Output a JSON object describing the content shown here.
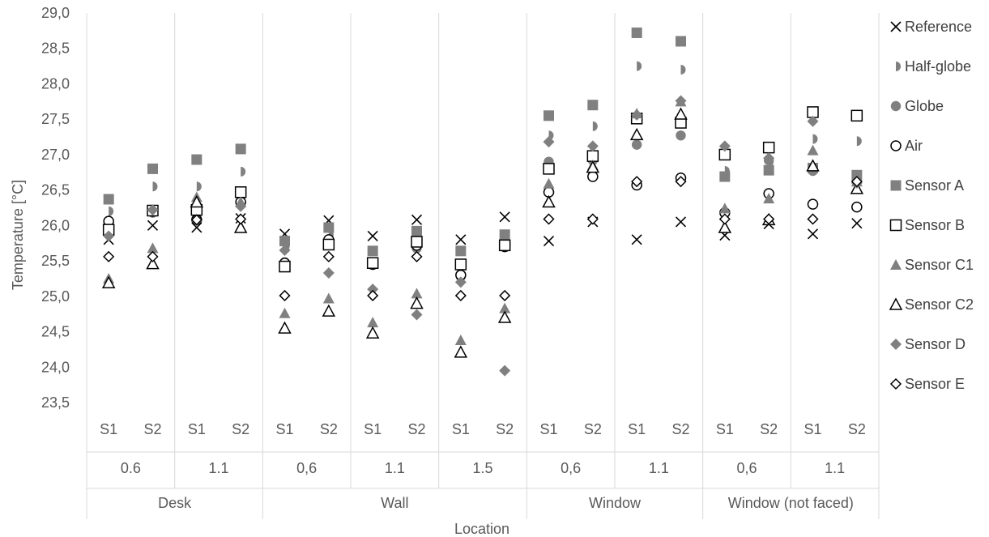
{
  "chart_data": {
    "type": "scatter",
    "title": "",
    "xlabel": "Location",
    "ylabel": "Temperature [°C]",
    "ylim": [
      23.5,
      29.0
    ],
    "ytick_step": 0.5,
    "ytick_labels": [
      "23,5",
      "24,0",
      "24,5",
      "25,0",
      "25,5",
      "26,0",
      "26,5",
      "27,0",
      "27,5",
      "28,0",
      "28,5",
      "29,0"
    ],
    "grid": "vertical separators between location groups",
    "legend_position": "right",
    "locations": [
      {
        "label": "Desk",
        "heights": [
          {
            "label": "0.6",
            "sensors": [
              "S1",
              "S2"
            ]
          },
          {
            "label": "1.1",
            "sensors": [
              "S1",
              "S2"
            ]
          }
        ]
      },
      {
        "label": "Wall",
        "heights": [
          {
            "label": "0,6",
            "sensors": [
              "S1",
              "S2"
            ]
          },
          {
            "label": "1.1",
            "sensors": [
              "S1",
              "S2"
            ]
          },
          {
            "label": "1.5",
            "sensors": [
              "S1",
              "S2"
            ]
          }
        ]
      },
      {
        "label": "Window",
        "heights": [
          {
            "label": "0,6",
            "sensors": [
              "S1",
              "S2"
            ]
          },
          {
            "label": "1.1",
            "sensors": [
              "S1",
              "S2"
            ]
          }
        ]
      },
      {
        "label": "Window (not faced)",
        "heights": [
          {
            "label": "0,6",
            "sensors": [
              "S1",
              "S2"
            ]
          },
          {
            "label": "1.1",
            "sensors": [
              "S1",
              "S2"
            ]
          }
        ]
      }
    ],
    "series": [
      {
        "name": "Reference",
        "marker": "x",
        "color": "#000000",
        "values": [
          25.8,
          26.0,
          25.97,
          26.1,
          25.88,
          26.07,
          25.85,
          26.08,
          25.8,
          26.12,
          25.78,
          26.05,
          25.8,
          26.05,
          25.86,
          26.02,
          25.88,
          26.03
        ]
      },
      {
        "name": "Half-globe",
        "marker": "half-circle",
        "color": "#808080",
        "values": [
          26.2,
          26.55,
          26.55,
          26.76,
          25.7,
          25.87,
          25.45,
          25.8,
          25.45,
          25.75,
          27.27,
          27.4,
          28.25,
          28.2,
          26.77,
          26.9,
          27.22,
          27.19
        ]
      },
      {
        "name": "Globe",
        "marker": "circle",
        "color": "#808080",
        "values": [
          26.05,
          26.18,
          26.1,
          26.3,
          25.48,
          25.78,
          25.45,
          25.68,
          25.28,
          25.72,
          26.9,
          26.92,
          27.14,
          27.27,
          26.17,
          26.92,
          26.77,
          26.68
        ]
      },
      {
        "name": "Air",
        "marker": "open-circle",
        "color": "#000000",
        "values": [
          26.06,
          26.2,
          26.08,
          26.33,
          25.47,
          25.8,
          25.45,
          25.72,
          25.3,
          25.7,
          26.47,
          26.69,
          26.57,
          26.67,
          26.18,
          26.45,
          26.3,
          26.26
        ]
      },
      {
        "name": "Sensor A",
        "marker": "square",
        "color": "#808080",
        "values": [
          26.37,
          26.8,
          26.93,
          27.08,
          25.78,
          25.97,
          25.64,
          25.92,
          25.64,
          25.87,
          27.55,
          27.7,
          28.72,
          28.6,
          26.69,
          26.78,
          26.81,
          26.71
        ]
      },
      {
        "name": "Sensor B",
        "marker": "open-square",
        "color": "#000000",
        "values": [
          25.94,
          26.21,
          26.22,
          26.47,
          25.42,
          25.73,
          25.47,
          25.77,
          25.45,
          25.72,
          26.8,
          26.98,
          27.51,
          27.45,
          27.0,
          27.1,
          27.6,
          27.55
        ]
      },
      {
        "name": "Sensor C1",
        "marker": "triangle",
        "color": "#808080",
        "values": [
          25.25,
          25.68,
          26.4,
          26.33,
          24.76,
          24.97,
          24.63,
          25.04,
          24.38,
          24.83,
          26.59,
          26.85,
          27.58,
          27.75,
          26.24,
          26.38,
          27.06,
          26.62
        ]
      },
      {
        "name": "Sensor C2",
        "marker": "open-triangle",
        "color": "#000000",
        "values": [
          25.19,
          25.46,
          26.33,
          25.97,
          24.55,
          24.79,
          24.48,
          24.9,
          24.21,
          24.7,
          26.33,
          26.82,
          27.28,
          27.57,
          25.97,
          26.08,
          26.84,
          26.52
        ]
      },
      {
        "name": "Sensor D",
        "marker": "diamond",
        "color": "#808080",
        "values": [
          25.85,
          26.22,
          26.07,
          26.27,
          25.65,
          25.33,
          25.1,
          24.74,
          25.2,
          23.95,
          27.18,
          27.12,
          27.56,
          27.76,
          27.12,
          26.95,
          27.47,
          26.6
        ]
      },
      {
        "name": "Sensor E",
        "marker": "open-diamond",
        "color": "#000000",
        "values": [
          25.56,
          25.56,
          26.08,
          26.09,
          25.01,
          25.56,
          25.01,
          25.56,
          25.01,
          25.01,
          26.09,
          26.09,
          26.62,
          26.62,
          26.09,
          26.09,
          26.09,
          26.62
        ]
      }
    ]
  }
}
